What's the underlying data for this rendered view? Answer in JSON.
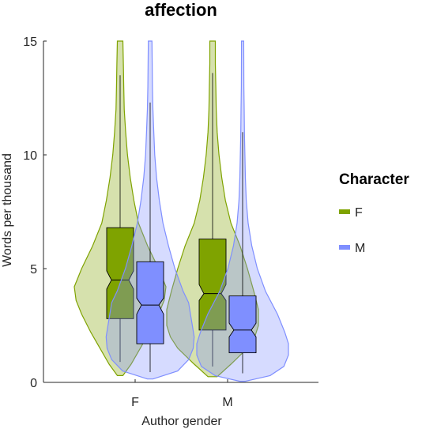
{
  "chart_data": {
    "type": "violin",
    "title": "affection",
    "xlabel": "Author gender",
    "ylabel": "Words per thousand",
    "categories": [
      "F",
      "M"
    ],
    "yticks": [
      0,
      5,
      10,
      15
    ],
    "ylim": [
      0,
      15
    ],
    "legend": {
      "title": "Character",
      "position": "right",
      "items": [
        {
          "label": "F",
          "color": "#7fa300"
        },
        {
          "label": "M",
          "color": "#7f8fff"
        }
      ]
    },
    "series": [
      {
        "name": "F",
        "color": "#7fa300",
        "groups": [
          {
            "category": "F",
            "box": {
              "q1": 2.8,
              "median": 4.5,
              "q3": 6.8,
              "notch_low": 4.1,
              "notch_high": 4.9,
              "whisker_low": 0.9,
              "whisker_high": 13.5
            },
            "violin": [
              [
                0.3,
                0.03
              ],
              [
                0.8,
                0.12
              ],
              [
                1.5,
                0.22
              ],
              [
                2.2,
                0.32
              ],
              [
                3.0,
                0.42
              ],
              [
                3.6,
                0.48
              ],
              [
                4.2,
                0.5
              ],
              [
                5.0,
                0.42
              ],
              [
                6.0,
                0.3
              ],
              [
                7.0,
                0.2
              ],
              [
                8.0,
                0.15
              ],
              [
                9.0,
                0.11
              ],
              [
                10.0,
                0.08
              ],
              [
                11.0,
                0.06
              ],
              [
                12.0,
                0.045
              ],
              [
                13.0,
                0.04
              ],
              [
                14.0,
                0.035
              ],
              [
                15.0,
                0.03
              ]
            ]
          },
          {
            "category": "M",
            "box": {
              "q1": 2.3,
              "median": 3.9,
              "q3": 6.3,
              "notch_low": 3.6,
              "notch_high": 4.3,
              "whisker_low": 0.7,
              "whisker_high": 13.6
            },
            "violin": [
              [
                0.25,
                0.05
              ],
              [
                0.8,
                0.2
              ],
              [
                1.5,
                0.38
              ],
              [
                2.0,
                0.46
              ],
              [
                2.5,
                0.5
              ],
              [
                3.2,
                0.5
              ],
              [
                4.0,
                0.45
              ],
              [
                5.0,
                0.38
              ],
              [
                6.0,
                0.3
              ],
              [
                7.0,
                0.2
              ],
              [
                8.0,
                0.14
              ],
              [
                9.0,
                0.1
              ],
              [
                10.0,
                0.07
              ],
              [
                11.0,
                0.05
              ],
              [
                12.0,
                0.04
              ],
              [
                13.0,
                0.035
              ],
              [
                14.0,
                0.03
              ],
              [
                15.0,
                0.03
              ]
            ]
          }
        ]
      },
      {
        "name": "M",
        "color": "#7f8fff",
        "groups": [
          {
            "category": "F",
            "box": {
              "q1": 1.7,
              "median": 3.4,
              "q3": 5.3,
              "notch_low": 3.0,
              "notch_high": 3.7,
              "whisker_low": 0.45,
              "whisker_high": 12.3
            },
            "violin": [
              [
                0.15,
                0.03
              ],
              [
                0.5,
                0.3
              ],
              [
                1.0,
                0.42
              ],
              [
                1.5,
                0.47
              ],
              [
                2.0,
                0.48
              ],
              [
                2.5,
                0.46
              ],
              [
                3.0,
                0.44
              ],
              [
                3.5,
                0.42
              ],
              [
                4.0,
                0.36
              ],
              [
                5.0,
                0.27
              ],
              [
                6.0,
                0.2
              ],
              [
                7.0,
                0.14
              ],
              [
                8.0,
                0.1
              ],
              [
                9.0,
                0.07
              ],
              [
                10.0,
                0.05
              ],
              [
                11.0,
                0.04
              ],
              [
                12.0,
                0.03
              ],
              [
                13.0,
                0.025
              ],
              [
                15.0,
                0.02
              ]
            ]
          },
          {
            "category": "M",
            "box": {
              "q1": 1.3,
              "median": 2.3,
              "q3": 3.8,
              "notch_low": 2.0,
              "notch_high": 2.6,
              "whisker_low": 0.4,
              "whisker_high": 11.0
            },
            "violin": [
              [
                0.05,
                0.03
              ],
              [
                0.3,
                0.3
              ],
              [
                0.7,
                0.45
              ],
              [
                1.2,
                0.5
              ],
              [
                1.7,
                0.5
              ],
              [
                2.2,
                0.46
              ],
              [
                3.0,
                0.38
              ],
              [
                4.0,
                0.25
              ],
              [
                5.0,
                0.16
              ],
              [
                6.0,
                0.1
              ],
              [
                7.0,
                0.06
              ],
              [
                8.0,
                0.04
              ],
              [
                9.0,
                0.03
              ],
              [
                10.0,
                0.025
              ],
              [
                11.0,
                0.02
              ],
              [
                12.0,
                0.017
              ],
              [
                13.0,
                0.014
              ],
              [
                15.0,
                0.012
              ]
            ]
          }
        ]
      }
    ]
  }
}
